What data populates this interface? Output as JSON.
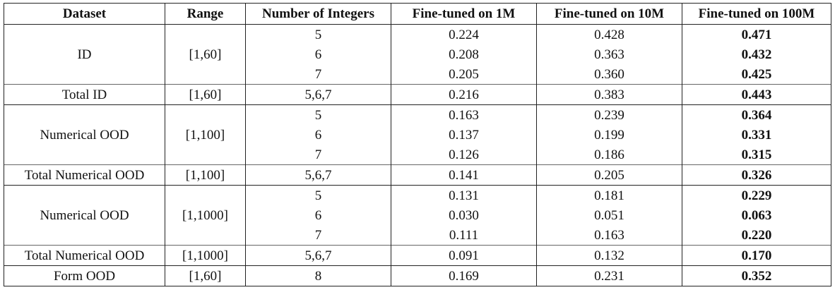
{
  "table": {
    "headers": [
      "Dataset",
      "Range",
      "Number of Integers",
      "Fine-tuned on 1M",
      "Fine-tuned on 10M",
      "Fine-tuned on 100M"
    ],
    "groups": [
      {
        "dataset": "ID",
        "range": "[1,60]",
        "rows": [
          {
            "n": "5",
            "m1": "0.224",
            "m10": "0.428",
            "m100": "0.471"
          },
          {
            "n": "6",
            "m1": "0.208",
            "m10": "0.363",
            "m100": "0.432"
          },
          {
            "n": "7",
            "m1": "0.205",
            "m10": "0.360",
            "m100": "0.425"
          }
        ],
        "total": {
          "dataset": "Total ID",
          "range": "[1,60]",
          "n": "5,6,7",
          "m1": "0.216",
          "m10": "0.383",
          "m100": "0.443"
        }
      },
      {
        "dataset": "Numerical OOD",
        "range": "[1,100]",
        "rows": [
          {
            "n": "5",
            "m1": "0.163",
            "m10": "0.239",
            "m100": "0.364"
          },
          {
            "n": "6",
            "m1": "0.137",
            "m10": "0.199",
            "m100": "0.331"
          },
          {
            "n": "7",
            "m1": "0.126",
            "m10": "0.186",
            "m100": "0.315"
          }
        ],
        "total": {
          "dataset": "Total Numerical OOD",
          "range": "[1,100]",
          "n": "5,6,7",
          "m1": "0.141",
          "m10": "0.205",
          "m100": "0.326"
        }
      },
      {
        "dataset": "Numerical OOD",
        "range": "[1,1000]",
        "rows": [
          {
            "n": "5",
            "m1": "0.131",
            "m10": "0.181",
            "m100": "0.229"
          },
          {
            "n": "6",
            "m1": "0.030",
            "m10": "0.051",
            "m100": "0.063"
          },
          {
            "n": "7",
            "m1": "0.111",
            "m10": "0.163",
            "m100": "0.220"
          }
        ],
        "total": {
          "dataset": "Total Numerical OOD",
          "range": "[1,1000]",
          "n": "5,6,7",
          "m1": "0.091",
          "m10": "0.132",
          "m100": "0.170"
        }
      }
    ],
    "form_ood": {
      "dataset": "Form OOD",
      "range": "[1,60]",
      "n": "8",
      "m1": "0.169",
      "m10": "0.231",
      "m100": "0.352"
    }
  }
}
